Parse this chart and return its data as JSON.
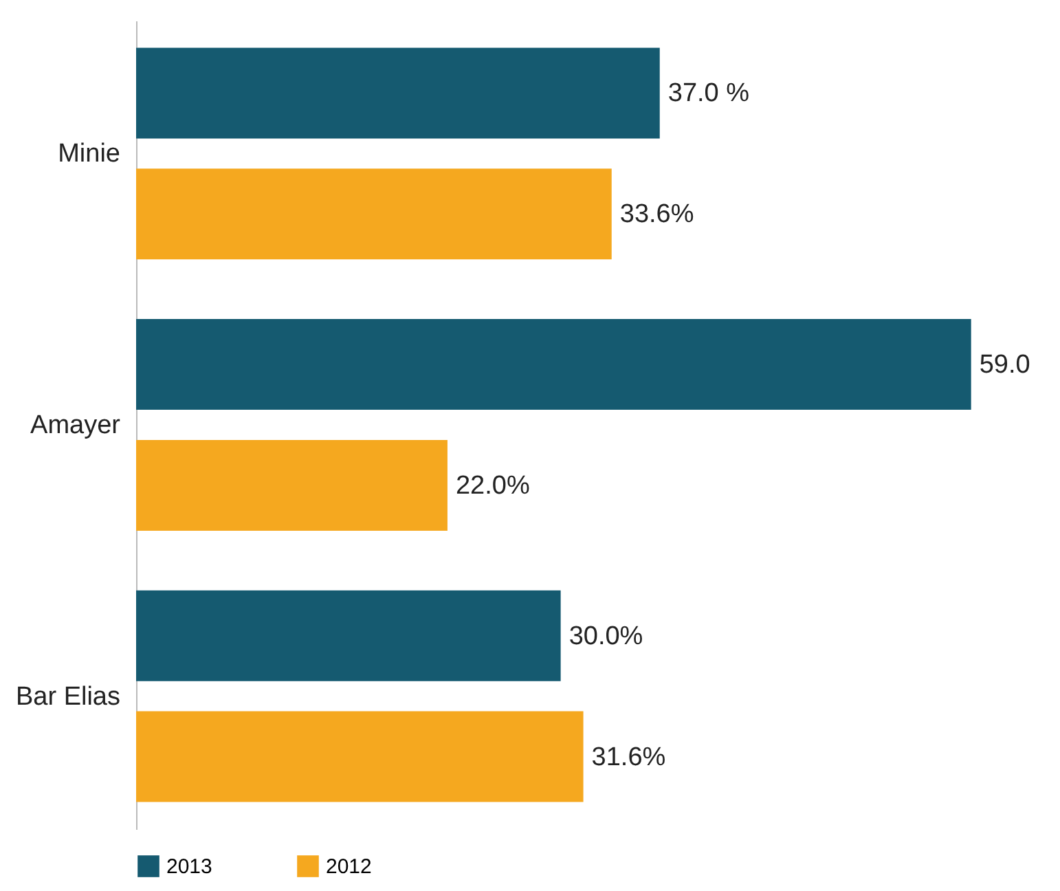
{
  "chart_data": {
    "type": "bar",
    "orientation": "horizontal",
    "categories": [
      "Minie",
      "Amayer",
      "Bar Elias"
    ],
    "series": [
      {
        "name": "2013",
        "color": "#155a70",
        "values": [
          37.0,
          59.0,
          30.0
        ],
        "value_labels": [
          "37.0 %",
          "59.0",
          "30.0%"
        ]
      },
      {
        "name": "2012",
        "color": "#f5a81f",
        "values": [
          33.6,
          22.0,
          31.6
        ],
        "value_labels": [
          "33.6%",
          "22.0%",
          "31.6%"
        ]
      }
    ],
    "legend": "bottom"
  }
}
